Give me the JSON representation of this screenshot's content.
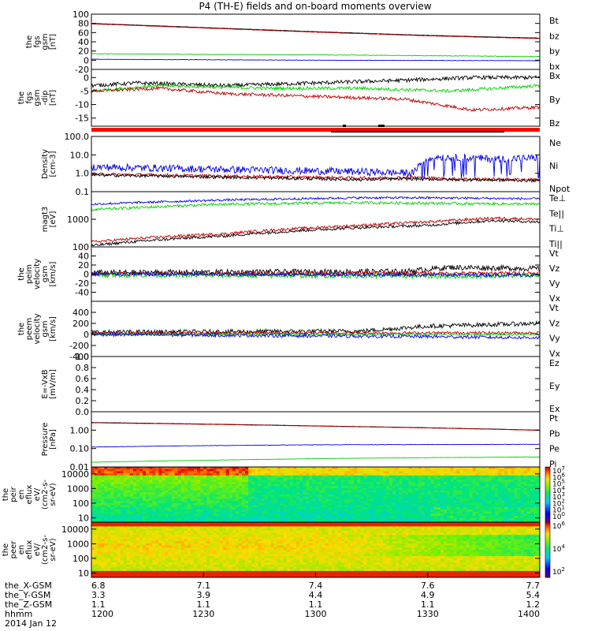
{
  "title": "P4 (TH-E) fields and on-board moments overview",
  "chart_data": [
    {
      "type": "line",
      "name": "fgs-gsm",
      "ylabel": [
        "the",
        "fgs",
        "gsm",
        "[nT]"
      ],
      "ylim": [
        -20,
        100
      ],
      "scale": "linear",
      "ticks": [
        -20,
        0,
        20,
        40,
        60,
        80,
        100
      ],
      "tick_labels": [
        "-20",
        "0",
        "20",
        "40",
        "60",
        "80",
        "100"
      ],
      "series": [
        {
          "name": "Bt",
          "color": "#000000",
          "x": [
            0,
            0.25,
            0.5,
            0.75,
            1
          ],
          "values": [
            80,
            71,
            62,
            54,
            48
          ],
          "noise": 0.3
        },
        {
          "name": "bz",
          "color": "#c00000",
          "x": [
            0,
            0.25,
            0.5,
            0.75,
            1
          ],
          "values": [
            79,
            70,
            61,
            53,
            47
          ],
          "noise": 0.3
        },
        {
          "name": "by",
          "color": "#00d000",
          "x": [
            0,
            0.2,
            0.6,
            1
          ],
          "values": [
            14,
            13,
            11,
            8
          ],
          "noise": 0.6
        },
        {
          "name": "bx",
          "color": "#0000e0",
          "x": [
            0,
            0.5,
            1
          ],
          "values": [
            2,
            0,
            -1
          ],
          "noise": 0.4
        }
      ]
    },
    {
      "type": "line",
      "name": "fgs-gsm-dip",
      "ylabel": [
        "the",
        "fgs",
        "gsm",
        "-dip",
        "[nT]"
      ],
      "ylim": [
        -18,
        3
      ],
      "scale": "linear",
      "ticks": [
        -15,
        -10,
        -5,
        0
      ],
      "tick_labels": [
        "-15",
        "-10",
        "-5",
        "0"
      ],
      "series": [
        {
          "name": "Bx",
          "color": "#000000",
          "x": [
            0,
            0.1,
            0.3,
            0.5,
            0.7,
            0.85,
            1
          ],
          "values": [
            -3,
            -2,
            -3,
            -2,
            -1,
            0,
            0
          ],
          "noise": 0.7
        },
        {
          "name": "By",
          "color": "#00d000",
          "x": [
            0,
            0.15,
            0.4,
            0.6,
            0.8,
            1
          ],
          "values": [
            -5,
            -3,
            -4,
            -4,
            -5,
            -3
          ],
          "noise": 0.6
        },
        {
          "name": "Bz",
          "color": "#c00000",
          "x": [
            0,
            0.15,
            0.3,
            0.5,
            0.7,
            0.85,
            1
          ],
          "values": [
            -5,
            -4,
            -6,
            -7,
            -8,
            -12,
            -11
          ],
          "noise": 0.6
        }
      ]
    },
    {
      "type": "line",
      "name": "density",
      "ylabel": [
        "Density",
        "[cm-3]"
      ],
      "ylim": [
        0.1,
        100
      ],
      "scale": "log",
      "ticks": [
        0.1,
        1,
        10,
        100
      ],
      "tick_labels": [
        "0.1",
        "1.0",
        "10.0",
        "100.0"
      ],
      "series": [
        {
          "name": "Ne",
          "color": "#c00000",
          "x": [
            0,
            0.3,
            0.6,
            0.72,
            0.8,
            1
          ],
          "values": [
            0.9,
            0.7,
            0.55,
            0.6,
            0.5,
            0.45
          ],
          "noise": 0.08
        },
        {
          "name": "Ni",
          "color": "#000000",
          "x": [
            0,
            0.3,
            0.6,
            0.72,
            0.8,
            1
          ],
          "values": [
            0.8,
            0.6,
            0.45,
            0.5,
            0.45,
            0.4
          ],
          "noise": 0.08
        },
        {
          "name": "Npot",
          "color": "#0000e0",
          "x": [
            0,
            0.3,
            0.6,
            0.72,
            0.76,
            0.9,
            1
          ],
          "values": [
            2.2,
            1.6,
            1.2,
            1.0,
            8,
            6,
            7
          ],
          "noise": 0.2
        }
      ]
    },
    {
      "type": "line",
      "name": "temperature",
      "ylabel": [
        "magt3",
        "[eV]"
      ],
      "ylim": [
        100,
        10000
      ],
      "scale": "log",
      "ticks": [
        100,
        1000
      ],
      "tick_labels": [
        "100",
        "1000"
      ],
      "series": [
        {
          "name": "Te⊥",
          "color": "#c00000",
          "x": [
            0,
            0.3,
            0.6,
            0.75,
            0.9,
            1
          ],
          "values": [
            150,
            300,
            600,
            800,
            1100,
            1000
          ],
          "noise": 0.05
        },
        {
          "name": "Te||",
          "color": "#000000",
          "x": [
            0,
            0.3,
            0.6,
            0.75,
            0.9,
            1
          ],
          "values": [
            110,
            250,
            500,
            600,
            900,
            800
          ],
          "noise": 0.05
        },
        {
          "name": "Ti⊥",
          "color": "#0000e0",
          "x": [
            0,
            0.3,
            0.6,
            0.75,
            1
          ],
          "values": [
            3500,
            5000,
            6000,
            6000,
            5500
          ],
          "noise": 0.04
        },
        {
          "name": "Ti||",
          "color": "#00d000",
          "x": [
            0,
            0.3,
            0.6,
            0.75,
            1
          ],
          "values": [
            2200,
            3500,
            4000,
            3800,
            3500
          ],
          "noise": 0.05
        }
      ]
    },
    {
      "type": "line",
      "name": "peim-velocity",
      "ylabel": [
        "the",
        "peim",
        "velocity",
        "gsm",
        "[km/s]"
      ],
      "ylim": [
        -60,
        60
      ],
      "scale": "linear",
      "ticks": [
        -40,
        -20,
        0,
        20,
        40
      ],
      "tick_labels": [
        "-40",
        "-20",
        "0",
        "20",
        "40"
      ],
      "series": [
        {
          "name": "Vt",
          "color": "#000000",
          "x": [
            0,
            0.7,
            0.8,
            1
          ],
          "values": [
            3,
            6,
            15,
            12
          ],
          "noise": 6
        },
        {
          "name": "Vz",
          "color": "#c00000",
          "x": [
            0,
            1
          ],
          "values": [
            0,
            2
          ],
          "noise": 4
        },
        {
          "name": "Vy",
          "color": "#00d000",
          "x": [
            0,
            0.8,
            1
          ],
          "values": [
            -2,
            -5,
            -3
          ],
          "noise": 5
        },
        {
          "name": "Vx",
          "color": "#0000e0",
          "x": [
            0,
            1
          ],
          "values": [
            0,
            -2
          ],
          "noise": 4
        }
      ]
    },
    {
      "type": "line",
      "name": "peem-velocity",
      "ylabel": [
        "the",
        "peem",
        "velocity",
        "gsm",
        "[km/s]"
      ],
      "ylim": [
        -400,
        600
      ],
      "scale": "linear",
      "ticks": [
        -400,
        -200,
        0,
        200,
        400
      ],
      "tick_labels": [
        "-400",
        "-200",
        "0",
        "200",
        "400"
      ],
      "series": [
        {
          "name": "Vt",
          "color": "#000000",
          "x": [
            0,
            0.6,
            0.75,
            0.9,
            1
          ],
          "values": [
            40,
            60,
            150,
            180,
            200
          ],
          "noise": 40
        },
        {
          "name": "Vz",
          "color": "#c00000",
          "x": [
            0,
            1
          ],
          "values": [
            20,
            30
          ],
          "noise": 25
        },
        {
          "name": "Vy",
          "color": "#00d000",
          "x": [
            0,
            1
          ],
          "values": [
            0,
            0
          ],
          "noise": 20
        },
        {
          "name": "Vx",
          "color": "#0000e0",
          "x": [
            0,
            0.75,
            1
          ],
          "values": [
            0,
            -40,
            -60
          ],
          "noise": 30
        }
      ]
    },
    {
      "type": "line",
      "name": "efield",
      "ylabel": [
        "E=-VxB",
        "[mV/m]"
      ],
      "ylim": [
        0,
        1
      ],
      "scale": "linear",
      "ticks": [
        0,
        0.2,
        0.4,
        0.6,
        0.8,
        1.0
      ],
      "tick_labels": [
        "0.0",
        "0.2",
        "0.4",
        "0.6",
        "0.8",
        "1.0"
      ],
      "series": [
        {
          "name": "Ez",
          "color": "#c00000",
          "x": [],
          "values": [],
          "noise": 0
        },
        {
          "name": "Ey",
          "color": "#00d000",
          "x": [],
          "values": [],
          "noise": 0
        },
        {
          "name": "Ex",
          "color": "#0000e0",
          "x": [],
          "values": [],
          "noise": 0
        }
      ]
    },
    {
      "type": "line",
      "name": "pressure",
      "ylabel": [
        "Pressure",
        "[nPa]"
      ],
      "ylim": [
        0.01,
        10
      ],
      "scale": "log",
      "ticks": [
        0.01,
        0.1,
        1
      ],
      "tick_labels": [
        "0.01",
        "0.10",
        "1.00"
      ],
      "series": [
        {
          "name": "Pt",
          "color": "#000000",
          "x": [
            0,
            0.5,
            1
          ],
          "values": [
            2.6,
            1.7,
            1.0
          ],
          "noise": 0.005
        },
        {
          "name": "Pb",
          "color": "#c00000",
          "x": [
            0,
            0.5,
            1
          ],
          "values": [
            2.5,
            1.65,
            0.97
          ],
          "noise": 0.005
        },
        {
          "name": "Pe",
          "color": "#0000e0",
          "x": [
            0,
            0.2,
            0.5,
            1
          ],
          "values": [
            0.12,
            0.14,
            0.16,
            0.17
          ],
          "noise": 0.01
        },
        {
          "name": "Pi",
          "color": "#00d000",
          "x": [
            0,
            0.3,
            0.6,
            1
          ],
          "values": [
            0.018,
            0.024,
            0.03,
            0.035
          ],
          "noise": 0.01
        }
      ]
    },
    {
      "type": "heatmap",
      "name": "peir-energy-flux",
      "ylabel": [
        "the",
        "peir",
        "en",
        "eflux",
        "eV/",
        "(cm2-s-",
        "sr-eV)"
      ],
      "ylim": [
        5,
        30000
      ],
      "scale": "log",
      "ticks": [
        10,
        100,
        1000,
        10000
      ],
      "tick_labels": [
        "10",
        "100",
        "1000",
        "10000"
      ],
      "colorbar": {
        "min_exp": 1,
        "max_exp": 7,
        "labels": [
          "10^7",
          "10^6",
          "10^5",
          "10^4",
          "10^3",
          "10^2",
          "10^1",
          "10^0"
        ]
      }
    },
    {
      "type": "heatmap",
      "name": "peer-energy-flux",
      "ylabel": [
        "the",
        "peer",
        "en",
        "eflux",
        "eV/",
        "(cm2-s-",
        "sr-eV)"
      ],
      "ylim": [
        5,
        30000
      ],
      "scale": "log",
      "ticks": [
        10,
        100,
        1000,
        10000
      ],
      "tick_labels": [
        "10",
        "100",
        "1000",
        "10000"
      ],
      "colorbar": {
        "min_exp": 2,
        "max_exp": 6,
        "labels": [
          "10^6",
          "10^4",
          "10^2"
        ]
      }
    }
  ],
  "xaxis": {
    "rows": [
      {
        "label": "the_X-GSM",
        "values": [
          "6.8",
          "7.1",
          "7.4",
          "7.6",
          "7.7"
        ]
      },
      {
        "label": "the_Y-GSM",
        "values": [
          "3.3",
          "3.9",
          "4.4",
          "4.9",
          "5.4"
        ]
      },
      {
        "label": "the_Z-GSM",
        "values": [
          "1.1",
          "1.1",
          "1.1",
          "1.1",
          "1.2"
        ]
      },
      {
        "label": "hhmm",
        "values": [
          "1200",
          "1230",
          "1300",
          "1330",
          "1400"
        ]
      }
    ],
    "date": "2014 Jan 12"
  }
}
